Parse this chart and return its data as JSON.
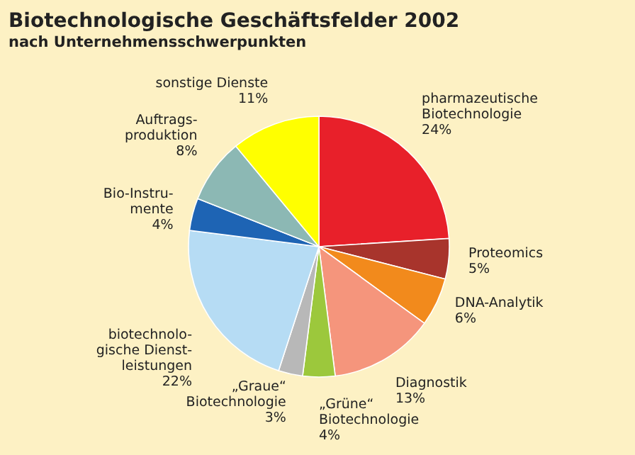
{
  "chart_data": {
    "type": "pie",
    "title": "Biotechnologische Geschäftsfelder 2002",
    "subtitle": "nach Unternehmensschwerpunkten",
    "categories": [
      "pharmazeutische\nBiotechnologie",
      "Proteomics",
      "DNA-Analytik",
      "Diagnostik",
      "„Grüne“\nBiotechnologie",
      "„Graue“\nBiotechnologie",
      "biotechnolo-\ngische Dienst-\nleistungen",
      "Bio-Instru-\nmente",
      "Auftrags-\nproduktion",
      "sonstige Dienste"
    ],
    "values": [
      24,
      5,
      6,
      13,
      4,
      3,
      22,
      4,
      8,
      11
    ],
    "value_labels": [
      "24%",
      "5%",
      "6%",
      "13%",
      "4%",
      "3%",
      "22%",
      "4%",
      "8%",
      "11%"
    ],
    "colors": [
      "#e8202a",
      "#a8342c",
      "#f28a1c",
      "#f5957c",
      "#9cc83c",
      "#b8b8b8",
      "#b6dcf4",
      "#1e64b4",
      "#8cb8b4",
      "#ffff00"
    ]
  }
}
